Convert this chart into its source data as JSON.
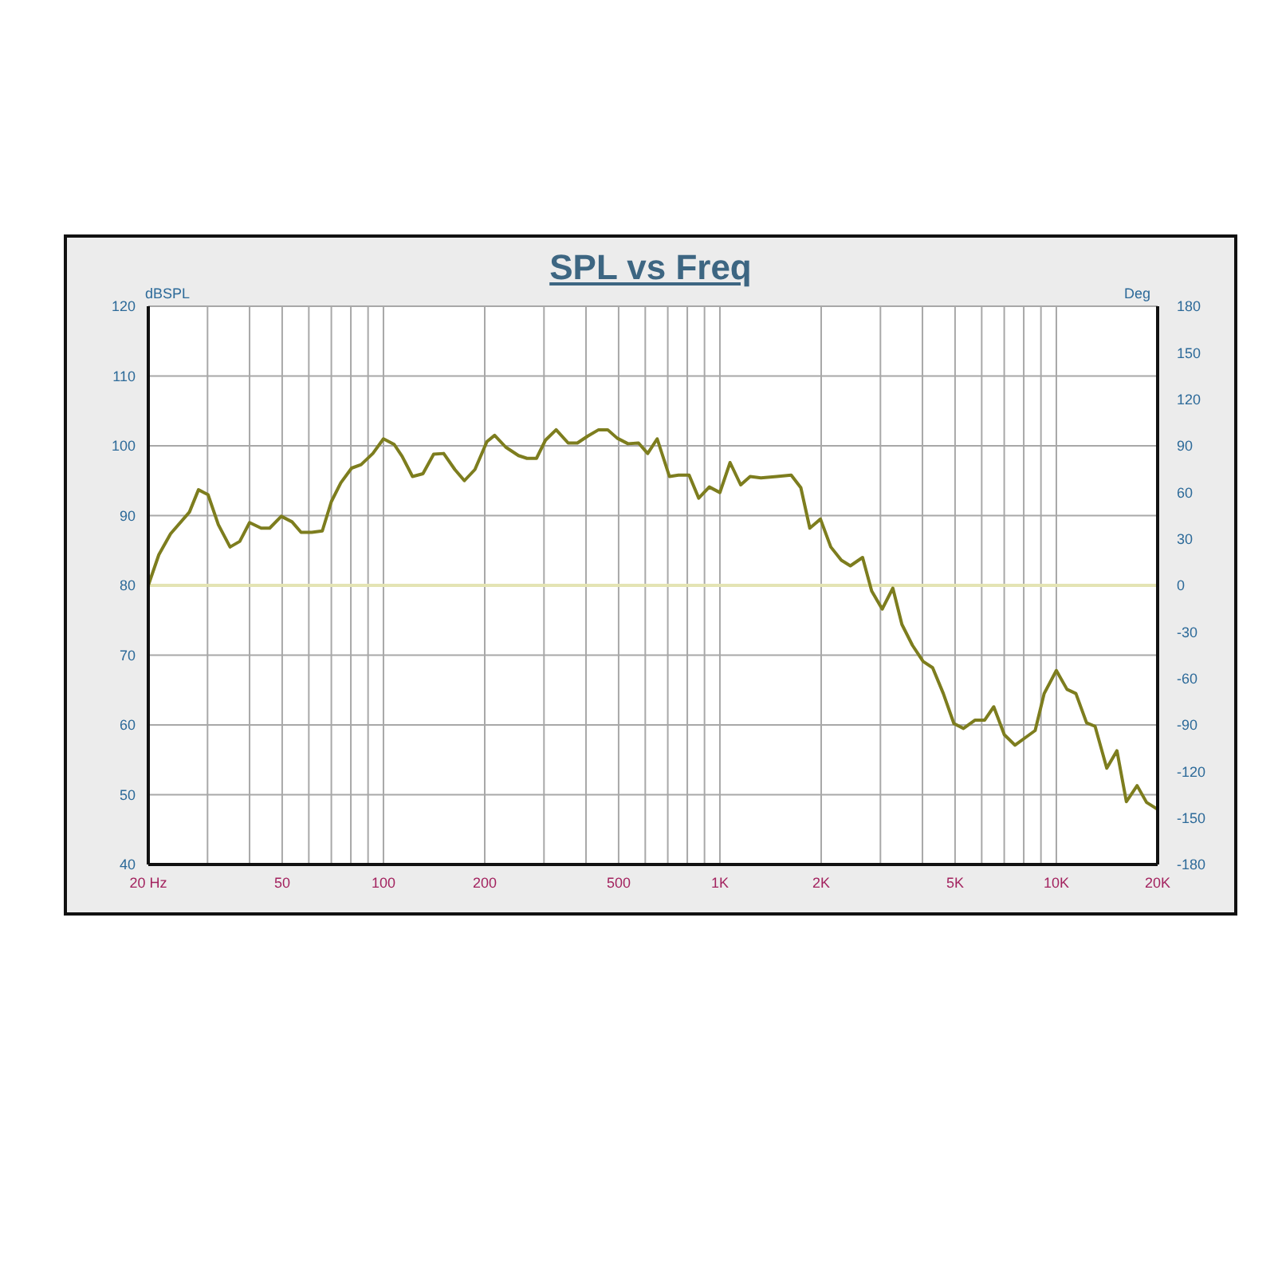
{
  "chart_data": {
    "type": "line",
    "title": "SPL vs Freq",
    "ylabel": "dBSPL",
    "y2label": "Deg",
    "log": "x",
    "grid": true,
    "marker": "none",
    "line_style": "solid",
    "xlim": [
      20,
      20000
    ],
    "xticks": [
      {
        "value": 20,
        "label": "20  Hz"
      },
      {
        "value": 30,
        "label": null
      },
      {
        "value": 40,
        "label": null
      },
      50,
      {
        "value": 60,
        "label": null
      },
      {
        "value": 70,
        "label": null
      },
      {
        "value": 80,
        "label": null
      },
      {
        "value": 90,
        "label": null
      },
      100,
      200,
      {
        "value": 300,
        "label": null
      },
      {
        "value": 400,
        "label": null
      },
      500,
      {
        "value": 600,
        "label": null
      },
      {
        "value": 700,
        "label": null
      },
      {
        "value": 800,
        "label": null
      },
      {
        "value": 900,
        "label": null
      },
      {
        "value": 1000,
        "label": "1K"
      },
      {
        "value": 2000,
        "label": "2K"
      },
      {
        "value": 3000,
        "label": null
      },
      {
        "value": 4000,
        "label": null
      },
      {
        "value": 5000,
        "label": "5K"
      },
      {
        "value": 6000,
        "label": null
      },
      {
        "value": 7000,
        "label": null
      },
      {
        "value": 8000,
        "label": null
      },
      {
        "value": 9000,
        "label": null
      },
      {
        "value": 10000,
        "label": "10K"
      },
      {
        "value": 20000,
        "label": "20K"
      }
    ],
    "ylim": [
      40,
      120
    ],
    "yticks": [
      40,
      50,
      60,
      70,
      80,
      90,
      100,
      110,
      120
    ],
    "y2lim": [
      -180,
      180
    ],
    "y2ticks": [
      -180,
      -150,
      -120,
      -90,
      -60,
      -30,
      0,
      30,
      60,
      90,
      120,
      150,
      180
    ],
    "ref_lines": [
      {
        "axis": "y2",
        "value": 0,
        "color": "#e4e4b4"
      }
    ],
    "series": [
      {
        "color": "#7d7d1e",
        "x": [
          20,
          21.5,
          23.3,
          26.5,
          28.2,
          30.1,
          32.3,
          35,
          37.4,
          40,
          43.3,
          45.9,
          49.7,
          53.5,
          56.9,
          61.2,
          65.8,
          70,
          74.7,
          80.4,
          85.8,
          93,
          100,
          107.6,
          113.6,
          122,
          131,
          141,
          151,
          163,
          174,
          187,
          203,
          214,
          231,
          252,
          267,
          285,
          303,
          326,
          354,
          377,
          405,
          436,
          464,
          495,
          533,
          573,
          610,
          651,
          708,
          753,
          810,
          865,
          930,
          1000,
          1072,
          1153,
          1230,
          1324,
          1476,
          1629,
          1740,
          1850,
          1990,
          2136,
          2296,
          2442,
          2655,
          2825,
          3037,
          3266,
          3475,
          3736,
          4018,
          4288,
          4614,
          4960,
          5296,
          5736,
          6124,
          6516,
          7004,
          7534,
          8100,
          8650,
          9200,
          10000,
          10756,
          11432,
          12300,
          13035,
          14120,
          15140,
          16150,
          17380,
          18540,
          20000
        ],
        "values": [
          80,
          84.4,
          87.4,
          90.5,
          93.7,
          93,
          88.7,
          85.5,
          86.3,
          89,
          88.2,
          88.2,
          89.9,
          89.1,
          87.6,
          87.6,
          87.8,
          92,
          94.7,
          96.8,
          97.3,
          98.9,
          101,
          100.2,
          98.5,
          95.6,
          96,
          98.8,
          98.9,
          96.6,
          95,
          96.6,
          100.6,
          101.5,
          99.8,
          98.6,
          98.2,
          98.2,
          100.8,
          102.3,
          100.4,
          100.4,
          101.4,
          102.3,
          102.3,
          101.1,
          100.3,
          100.4,
          98.9,
          101,
          95.6,
          95.8,
          95.8,
          92.5,
          94.1,
          93.3,
          97.6,
          94.4,
          95.6,
          95.4,
          95.6,
          95.8,
          94,
          88.2,
          89.5,
          85.5,
          83.6,
          82.8,
          84,
          79.2,
          76.6,
          79.6,
          74.4,
          71.4,
          69.1,
          68.2,
          64.5,
          60.2,
          59.5,
          60.7,
          60.7,
          62.6,
          58.6,
          57.1,
          58.2,
          59.2,
          64.5,
          67.8,
          65.1,
          64.5,
          60.3,
          59.8,
          53.8,
          56.3,
          49,
          51.3,
          48.9,
          47.9
        ]
      }
    ]
  }
}
